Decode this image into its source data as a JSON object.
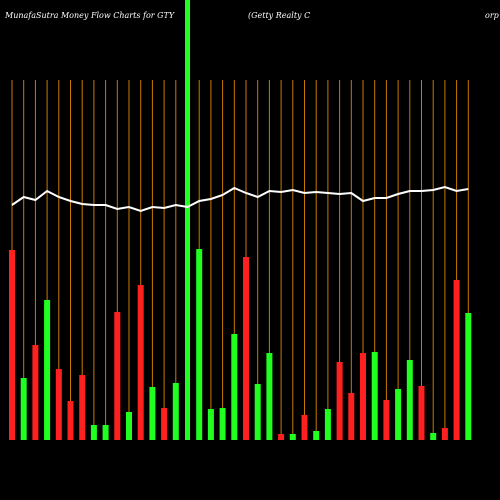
{
  "chart_data": {
    "type": "bar",
    "title": "MunafaSutra  Money Flow  Charts for GTY",
    "subtitle": "(Getty Realty C",
    "subtitle_tail": "orp",
    "values": [
      190,
      62,
      95,
      140,
      71,
      39,
      65,
      15,
      15,
      128,
      28,
      155,
      53,
      32,
      57,
      440,
      191,
      31,
      32,
      106,
      183,
      56,
      87,
      6,
      6,
      25,
      9,
      31,
      78,
      47,
      87,
      88,
      40,
      51,
      80,
      54,
      7,
      12,
      160,
      127
    ],
    "colors": [
      "#ff2020",
      "#20ff20",
      "#ff2020",
      "#20ff20",
      "#ff2020",
      "#ff2020",
      "#ff2020",
      "#20ff20",
      "#20ff20",
      "#ff2020",
      "#20ff20",
      "#ff2020",
      "#20ff20",
      "#ff2020",
      "#20ff20",
      "#20ff20",
      "#20ff20",
      "#20ff20",
      "#20ff20",
      "#20ff20",
      "#ff2020",
      "#20ff20",
      "#20ff20",
      "#ff2020",
      "#20ff20",
      "#ff2020",
      "#20ff20",
      "#20ff20",
      "#ff2020",
      "#ff2020",
      "#ff2020",
      "#20ff20",
      "#ff2020",
      "#20ff20",
      "#20ff20",
      "#ff2020",
      "#20ff20",
      "#ff2020",
      "#ff2020",
      "#20ff20"
    ],
    "line": [
      235,
      243,
      240,
      249,
      243,
      239,
      236,
      235,
      235,
      231,
      233,
      229,
      233,
      232,
      235,
      233,
      239,
      241,
      245,
      252,
      247,
      243,
      249,
      248,
      250,
      247,
      248,
      247,
      246,
      247,
      239,
      242,
      242,
      246,
      249,
      249,
      250,
      253,
      249,
      251
    ],
    "line_color": "#ffffff",
    "grid_color": "#c87a00",
    "ylim": [
      0,
      440
    ]
  }
}
